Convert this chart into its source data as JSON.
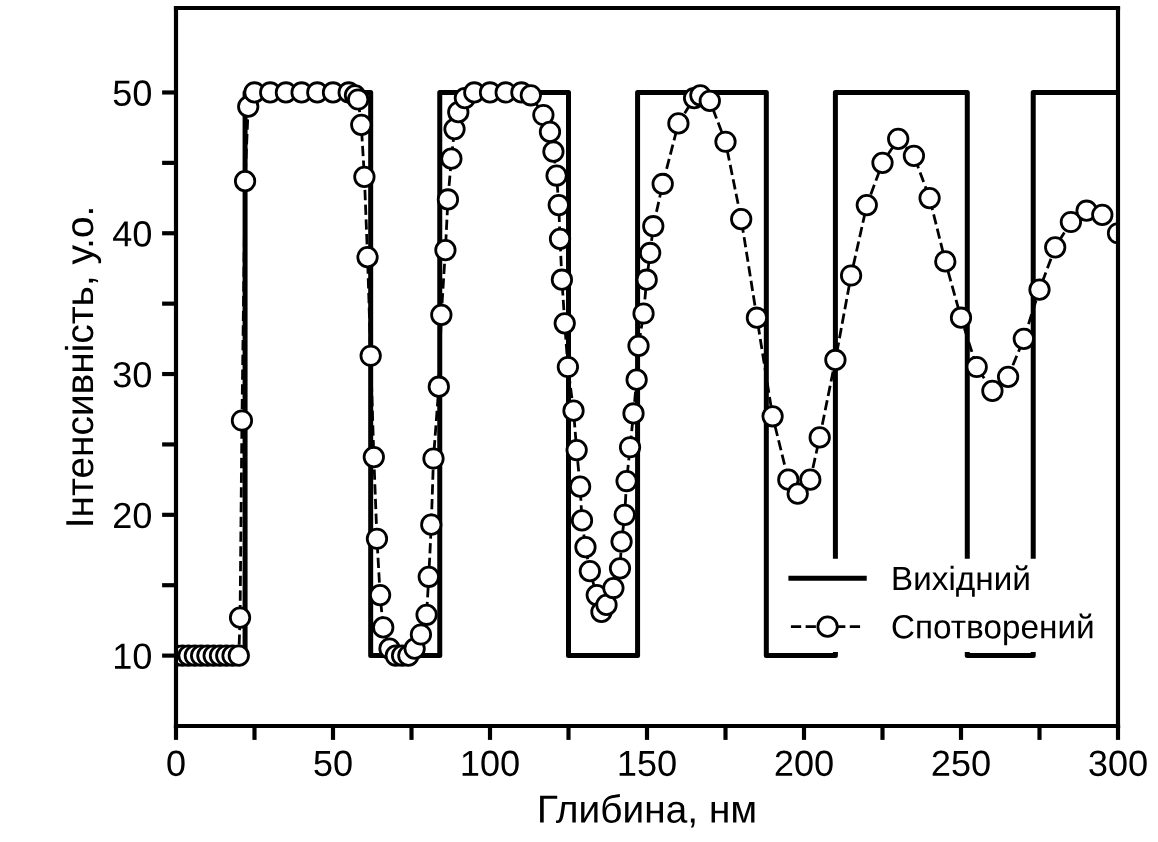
{
  "chart_data": {
    "type": "line",
    "xlabel": "Глибина, нм",
    "ylabel": "Інтенсивність, у.о.",
    "xlim": [
      0,
      300
    ],
    "ylim": [
      5,
      56
    ],
    "xticks": [
      0,
      {
        "value": 25,
        "label": null
      },
      50,
      {
        "value": 75,
        "label": null
      },
      100,
      {
        "value": 125,
        "label": null
      },
      150,
      {
        "value": 175,
        "label": null
      },
      200,
      {
        "value": 225,
        "label": null
      },
      250,
      {
        "value": 275,
        "label": null
      },
      300
    ],
    "yticks": [
      10,
      {
        "value": 15,
        "label": null
      },
      20,
      {
        "value": 25,
        "label": null
      },
      30,
      {
        "value": 35,
        "label": null
      },
      40,
      {
        "value": 45,
        "label": null
      },
      50
    ],
    "grid": false,
    "legend": "bottom right",
    "series": [
      {
        "name": "Вихідний",
        "type": "step",
        "color": "#000000",
        "line_style": "solid",
        "marker": "none",
        "x": [
          0,
          22,
          62,
          84,
          125,
          147,
          188,
          210,
          252,
          273,
          300
        ],
        "values": [
          10,
          50,
          10,
          50,
          10,
          50,
          10,
          50,
          10,
          50,
          50
        ]
      },
      {
        "name": "Спотворений",
        "color": "#000000",
        "line_style": "dashed",
        "marker": "circle",
        "x": [
          0,
          2,
          4,
          6,
          8,
          10,
          12,
          14,
          16,
          18,
          20,
          20.4,
          21,
          22,
          23,
          25,
          30,
          35,
          40,
          45,
          50,
          55,
          57,
          58,
          59,
          60,
          61,
          62,
          63,
          64,
          65,
          66,
          68,
          70,
          72,
          74,
          76,
          78,
          79.8,
          80.5,
          81.3,
          82,
          83.7,
          84.5,
          85.8,
          86.6,
          87.7,
          88.7,
          89.9,
          92,
          95,
          100,
          105,
          110,
          113,
          117,
          119.1,
          120.2,
          121.2,
          121.9,
          122.3,
          122.9,
          123.8,
          124.8,
          126.6,
          127.6,
          128.7,
          129.3,
          130.4,
          131.8,
          134,
          135.5,
          137.1,
          139.3,
          141.4,
          141.9,
          142.9,
          143.5,
          144.6,
          145.7,
          146.7,
          147.3,
          148.9,
          149.9,
          151,
          152,
          155,
          160,
          165,
          167,
          170,
          175,
          180,
          185,
          190,
          195,
          198,
          202,
          205,
          210,
          215,
          220,
          225,
          230,
          235,
          240,
          245,
          250,
          255,
          260,
          265,
          270,
          275,
          280,
          285,
          290,
          295,
          300
        ],
        "values": [
          10,
          10,
          10,
          10,
          10,
          10,
          10,
          10,
          10,
          10,
          10,
          12.7,
          26.7,
          43.7,
          49,
          50,
          50,
          50,
          50,
          50,
          50,
          50,
          49.8,
          49.5,
          47.7,
          44,
          38.3,
          31.3,
          24.1,
          18.3,
          14.3,
          12,
          10.5,
          10,
          10,
          10,
          10.5,
          11.5,
          12.9,
          15.6,
          19.3,
          24,
          29.1,
          34.2,
          38.8,
          42.4,
          45.3,
          47.4,
          48.6,
          49.6,
          50,
          50,
          50,
          50,
          49.8,
          48.4,
          47.2,
          45.8,
          44.1,
          42,
          39.6,
          36.7,
          33.6,
          30.5,
          27.4,
          24.6,
          22,
          19.6,
          17.7,
          16,
          14.3,
          13.1,
          13.6,
          14.8,
          16.2,
          18.1,
          20,
          22.4,
          24.8,
          27.2,
          29.6,
          32,
          34.3,
          36.7,
          38.6,
          40.5,
          43.5,
          47.8,
          49.6,
          49.8,
          49.4,
          46.5,
          41,
          34,
          27,
          22.5,
          21.5,
          22.5,
          25.5,
          31,
          37,
          42,
          45,
          46.7,
          45.5,
          42.5,
          38,
          34,
          30.5,
          28.8,
          29.8,
          32.5,
          36,
          39,
          40.8,
          41.6,
          41.3,
          40
        ]
      }
    ]
  }
}
